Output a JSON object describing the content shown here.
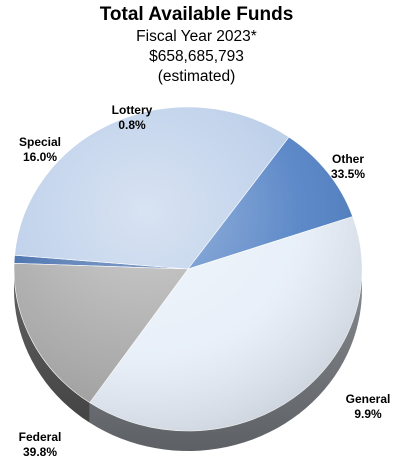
{
  "chart_data": {
    "type": "pie",
    "title": "Total Available Funds",
    "subtitle_lines": [
      "Fiscal Year 2023*",
      "$658,685,793",
      "(estimated)"
    ],
    "slices": [
      {
        "name": "Lottery",
        "value": 0.8,
        "value_label": "0.8%",
        "color": "#3a66a8"
      },
      {
        "name": "Other",
        "value": 33.5,
        "value_label": "33.5%",
        "color": "#b8cce8"
      },
      {
        "name": "General",
        "value": 9.9,
        "value_label": "9.9%",
        "color": "#4f7fc4"
      },
      {
        "name": "Federal",
        "value": 39.8,
        "value_label": "39.8%",
        "color": "#e6eef8"
      },
      {
        "name": "Special",
        "value": 16.0,
        "value_label": "16.0%",
        "color": "#a7a7a7"
      }
    ],
    "three_d": true,
    "legend": "none (labels beside slices)"
  }
}
